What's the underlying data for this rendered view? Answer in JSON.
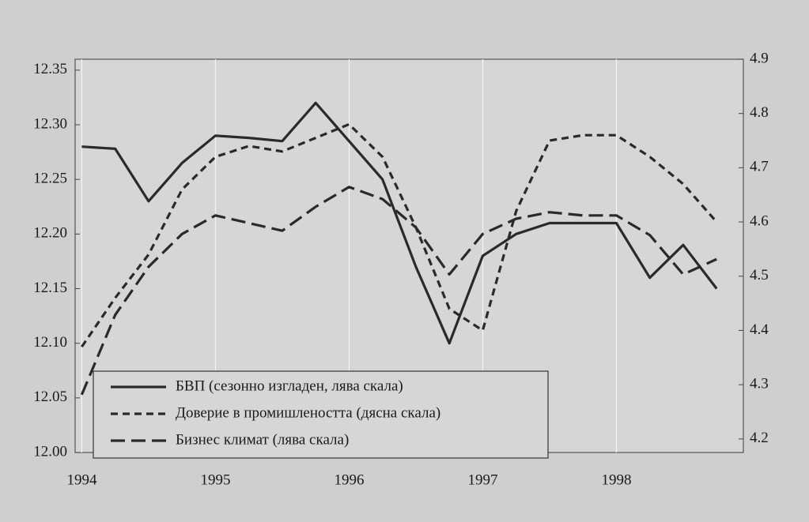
{
  "chart_data": {
    "type": "line",
    "x": [
      1994,
      1994.25,
      1994.5,
      1994.75,
      1995,
      1995.25,
      1995.5,
      1995.75,
      1996,
      1996.25,
      1996.5,
      1996.75,
      1997,
      1997.25,
      1997.5,
      1997.75,
      1998,
      1998.25,
      1998.5,
      1998.75
    ],
    "xlim": [
      1993.95,
      1998.95
    ],
    "xticks": [
      1994,
      1995,
      1996,
      1997,
      1998
    ],
    "ylim": [
      12.0,
      12.36
    ],
    "yticks": [
      {
        "value": 12.0,
        "label": "12.00"
      },
      12.05,
      {
        "value": 12.1,
        "label": "12.10"
      },
      12.15,
      {
        "value": 12.2,
        "label": "12.20"
      },
      12.25,
      {
        "value": 12.3,
        "label": "12.30"
      },
      12.35
    ],
    "y2lim": [
      4.175,
      4.9
    ],
    "y2ticks": [
      4.2,
      4.3,
      4.4,
      4.5,
      4.6,
      4.7,
      4.8,
      4.9
    ],
    "grid": true,
    "legend": "bottom-left",
    "series": [
      {
        "name": "БВП (сезонно изгладен, лява скала)",
        "color": "#2a2a2a",
        "linestyle": "solid",
        "values": [
          12.28,
          12.278,
          12.23,
          12.265,
          12.29,
          12.288,
          12.285,
          12.32,
          12.285,
          12.25,
          12.17,
          12.1,
          12.18,
          12.2,
          12.21,
          12.21,
          12.21,
          12.16,
          12.19,
          12.15
        ]
      },
      {
        "name": "Доверие в промишлеността (дясна скала)",
        "color": "#2a2a2a",
        "linestyle": "dashed",
        "axis": "y2",
        "values": [
          4.37,
          4.46,
          4.54,
          4.66,
          4.72,
          4.74,
          4.73,
          4.755,
          4.78,
          4.72,
          4.59,
          4.44,
          4.4,
          4.62,
          4.75,
          4.76,
          4.76,
          4.72,
          4.67,
          4.6
        ]
      },
      {
        "name": "Бизнес климат (лява скала)",
        "color": "#2a2a2a",
        "linestyle": "long-dashed",
        "values": [
          12.053,
          12.126,
          12.17,
          12.2,
          12.217,
          12.21,
          12.203,
          12.225,
          12.243,
          12.232,
          12.206,
          12.163,
          12.2,
          12.214,
          12.22,
          12.217,
          12.217,
          12.199,
          12.163,
          12.177
        ]
      }
    ]
  }
}
